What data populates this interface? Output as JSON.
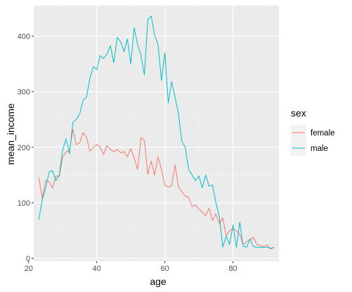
{
  "chart_data": {
    "type": "line",
    "xlabel": "age",
    "ylabel": "mean_income",
    "xlim": [
      21.5,
      93.5
    ],
    "ylim": [
      -5,
      455
    ],
    "x_ticks": [
      20,
      40,
      60,
      80
    ],
    "x_tick_labels": [
      "20",
      "40",
      "60",
      "80"
    ],
    "y_ticks": [
      0,
      100,
      200,
      300,
      400
    ],
    "y_tick_labels": [
      "0",
      "100",
      "200",
      "300",
      "400"
    ],
    "grid": true,
    "legend": {
      "title": "sex",
      "position": "right"
    },
    "series": [
      {
        "name": "female",
        "color": "#F8766D",
        "x": [
          23,
          24,
          25,
          26,
          27,
          28,
          29,
          30,
          31,
          32,
          33,
          34,
          35,
          36,
          37,
          38,
          39,
          40,
          41,
          42,
          43,
          44,
          45,
          46,
          47,
          48,
          49,
          50,
          51,
          52,
          53,
          54,
          55,
          56,
          57,
          58,
          59,
          60,
          61,
          62,
          63,
          64,
          65,
          66,
          67,
          68,
          69,
          70,
          71,
          72,
          73,
          74,
          75,
          76,
          77,
          78,
          79,
          80,
          81,
          82,
          83,
          84,
          85,
          86,
          87,
          88,
          89,
          90,
          91,
          92
        ],
        "y": [
          146,
          108,
          140,
          138,
          126,
          148,
          148,
          182,
          192,
          194,
          232,
          205,
          208,
          226,
          218,
          193,
          200,
          205,
          200,
          187,
          203,
          196,
          192,
          196,
          190,
          192,
          183,
          198,
          180,
          160,
          217,
          212,
          151,
          175,
          150,
          183,
          160,
          132,
          128,
          131,
          168,
          129,
          120,
          112,
          110,
          93,
          96,
          89,
          83,
          77,
          90,
          68,
          80,
          62,
          73,
          40,
          50,
          52,
          50,
          43,
          25,
          30,
          33,
          38,
          25,
          23,
          21,
          24,
          17,
          19
        ]
      },
      {
        "name": "male",
        "color": "#00BFC4",
        "x": [
          23,
          24,
          25,
          26,
          27,
          28,
          29,
          30,
          31,
          32,
          33,
          34,
          35,
          36,
          37,
          38,
          39,
          40,
          41,
          42,
          43,
          44,
          45,
          46,
          47,
          48,
          49,
          50,
          51,
          52,
          53,
          54,
          55,
          56,
          57,
          58,
          59,
          60,
          61,
          62,
          63,
          64,
          65,
          66,
          67,
          68,
          69,
          70,
          71,
          72,
          73,
          74,
          75,
          76,
          77,
          78,
          79,
          80,
          81,
          82,
          83,
          84,
          85,
          86,
          87,
          88,
          89,
          90,
          91,
          92
        ],
        "y": [
          70,
          105,
          127,
          155,
          158,
          140,
          150,
          195,
          215,
          188,
          245,
          250,
          260,
          285,
          290,
          325,
          345,
          340,
          365,
          360,
          368,
          383,
          352,
          398,
          390,
          372,
          395,
          350,
          415,
          385,
          365,
          330,
          430,
          436,
          402,
          385,
          320,
          370,
          280,
          318,
          290,
          260,
          210,
          200,
          160,
          150,
          140,
          148,
          127,
          150,
          130,
          132,
          100,
          75,
          20,
          40,
          25,
          60,
          20,
          65,
          22,
          20,
          35,
          21,
          20,
          20,
          20,
          20,
          18,
          20
        ]
      }
    ]
  }
}
